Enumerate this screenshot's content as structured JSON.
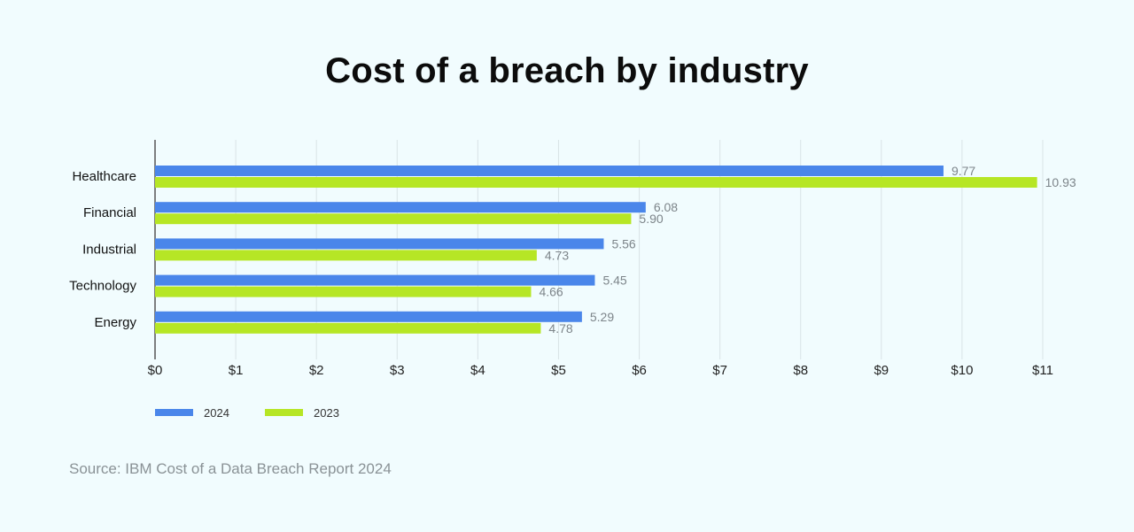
{
  "chart_data": {
    "type": "bar",
    "orientation": "horizontal",
    "title": "Cost of a breach by industry",
    "categories": [
      "Healthcare",
      "Financial",
      "Industrial",
      "Technology",
      "Energy"
    ],
    "series": [
      {
        "name": "2024",
        "color": "#4a86ea",
        "values": [
          9.77,
          6.08,
          5.56,
          5.45,
          5.29
        ],
        "labels": [
          "9.77",
          "6.08",
          "5.56",
          "5.45",
          "5.29"
        ]
      },
      {
        "name": "2023",
        "color": "#b6e625",
        "values": [
          10.93,
          5.9,
          4.73,
          4.66,
          4.78
        ],
        "labels": [
          "10.93",
          "5.90",
          "4.73",
          "4.66",
          "4.78"
        ]
      }
    ],
    "x_ticks": [
      "$0",
      "$1",
      "$2",
      "$3",
      "$4",
      "$5",
      "$6",
      "$7",
      "$8",
      "$9",
      "$10",
      "$11"
    ],
    "xlim": [
      0,
      11
    ],
    "grid": true,
    "legend_position": "bottom-left"
  },
  "source": "Source: IBM Cost of a Data Breach Report 2024",
  "colors": {
    "background": "#f1fcfe",
    "grid": "#d9e3e6",
    "axis": "#555555",
    "value_label": "#7d858a"
  }
}
